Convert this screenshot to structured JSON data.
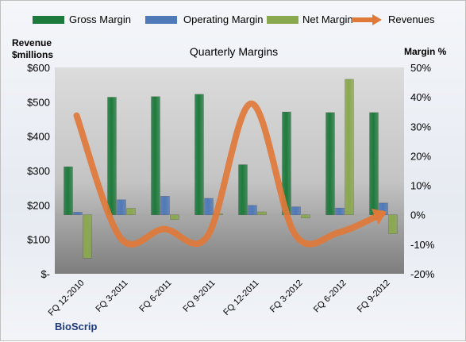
{
  "chart_data": {
    "type": "bar",
    "title": "Quarterly Margins",
    "brand": "BioScrip",
    "ylabel_left": [
      "Revenue",
      "$millions"
    ],
    "ylabel_right": "Margin %",
    "categories": [
      "FQ 12-2010",
      "FQ 3-2011",
      "FQ 6-2011",
      "FQ 9-2011",
      "FQ 12-2011",
      "FQ 3-2012",
      "FQ 6-2012",
      "FQ 9-2012"
    ],
    "left_axis": {
      "min": 0,
      "max": 600,
      "ticks": [
        "$-",
        "$100",
        "$200",
        "$300",
        "$400",
        "$500",
        "$600"
      ]
    },
    "right_axis": {
      "min": -20,
      "max": 50,
      "ticks": [
        "-20%",
        "-10%",
        "0%",
        "10%",
        "20%",
        "30%",
        "40%",
        "50%"
      ]
    },
    "series": [
      {
        "name": "Gross Margin",
        "kind": "bar",
        "axis": "right",
        "color": "#1e7a3c",
        "values": [
          16.3,
          39.9,
          40.1,
          40.9,
          17.0,
          34.9,
          34.7,
          34.7
        ]
      },
      {
        "name": "Operating Margin",
        "kind": "bar",
        "axis": "right",
        "color": "#4f79b8",
        "values": [
          0.9,
          5.1,
          6.3,
          5.6,
          3.2,
          2.7,
          2.3,
          4.0
        ]
      },
      {
        "name": "Net Margin",
        "kind": "bar",
        "axis": "right",
        "color": "#8aa84e",
        "values": [
          -14.7,
          2.2,
          -1.6,
          0.4,
          1.0,
          -1.1,
          46.0,
          -6.4
        ]
      },
      {
        "name": "Revenues",
        "kind": "line",
        "axis": "left",
        "color": "#e07a3a",
        "values": [
          460,
          105,
          130,
          110,
          495,
          115,
          120,
          175
        ]
      }
    ],
    "legend_position": "top",
    "grid": false
  }
}
